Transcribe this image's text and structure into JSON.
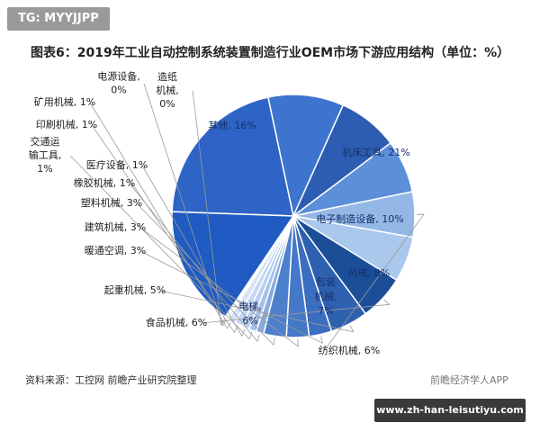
{
  "tag_text": "TG: MYYJJPP",
  "source_text": "资料来源：工控网 前瞻产业研究院整理",
  "watermark_text": "前瞻经济学人APP",
  "footer_url": "www.zh-han-leisutiyu.com",
  "chart_data": {
    "type": "pie",
    "title": "图表6：2019年工业自动控制系统装置制造行业OEM市场下游应用结构（单位：%）",
    "categories": [
      "机床工具",
      "电子制造设备",
      "风电",
      "包装机械",
      "纺织机械",
      "电梯",
      "食品机械",
      "起重机械",
      "暖通空调",
      "建筑机械",
      "塑料机械",
      "橡胶机械",
      "交通运输工具",
      "医疗设备",
      "印刷机械",
      "矿用机械",
      "电源设备",
      "造纸机械",
      "其他"
    ],
    "values": [
      21,
      10,
      8,
      7,
      6,
      6,
      6,
      5,
      3,
      3,
      3,
      1,
      1,
      1,
      1,
      1,
      0,
      0,
      16
    ],
    "slice_labels": [
      "机床工具, 21%",
      "电子制造设备, 10%",
      "风电, 8%",
      "包装\n机械,\n7%",
      "纺织机械, 6%",
      "电梯,\n6%",
      "食品机械, 6%",
      "起重机械, 5%",
      "暖通空调, 3%",
      "建筑机械, 3%",
      "塑料机械, 3%",
      "橡胶机械, 1%",
      "交通运\n输工具,\n1%",
      "医疗设备, 1%",
      "印刷机械, 1%",
      "矿用机械, 1%",
      "电源设备,\n0%",
      "造纸\n机械,\n0%",
      "其他, 16%"
    ],
    "colors": [
      "#2e64c5",
      "#3d74d0",
      "#2d5db2",
      "#5b8fd8",
      "#94b8e6",
      "#aac7ec",
      "#1c4e98",
      "#2e60b0",
      "#3b6dc0",
      "#4478c8",
      "#4c7fcc",
      "#89abe0",
      "#a5c1e9",
      "#b8cff0",
      "#c5d8f4",
      "#d5e3f8",
      "#e4edfa",
      "#eef3fc",
      "#1f5bc2"
    ]
  }
}
